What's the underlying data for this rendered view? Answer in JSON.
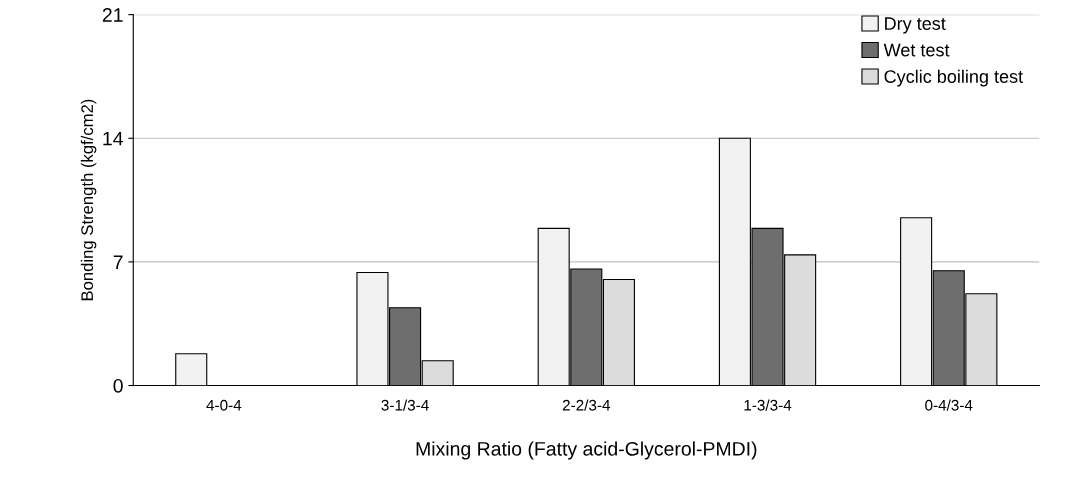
{
  "chart_data": {
    "type": "bar",
    "xlabel": "Mixing Ratio (Fatty acid-Glycerol-PMDI)",
    "ylabel": "Bonding Strength (kgf/cm2)",
    "categories": [
      "4-0-4",
      "3-1/3-4",
      "2-2/3-4",
      "1-3/3-4",
      "0-4/3-4"
    ],
    "series": [
      {
        "name": "Dry test",
        "color": "#f2f2f2",
        "values": [
          1.8,
          6.4,
          8.9,
          14.0,
          9.5
        ]
      },
      {
        "name": "Wet test",
        "color": "#6e6e6e",
        "values": [
          null,
          4.4,
          6.6,
          8.9,
          6.5
        ]
      },
      {
        "name": "Cyclic boiling test",
        "color": "#dcdcdc",
        "values": [
          null,
          1.4,
          6.0,
          7.4,
          5.2
        ]
      }
    ],
    "ylim": [
      0,
      21
    ],
    "yticks": [
      0,
      7,
      14,
      21
    ],
    "grid": "y",
    "legend": "top right"
  }
}
